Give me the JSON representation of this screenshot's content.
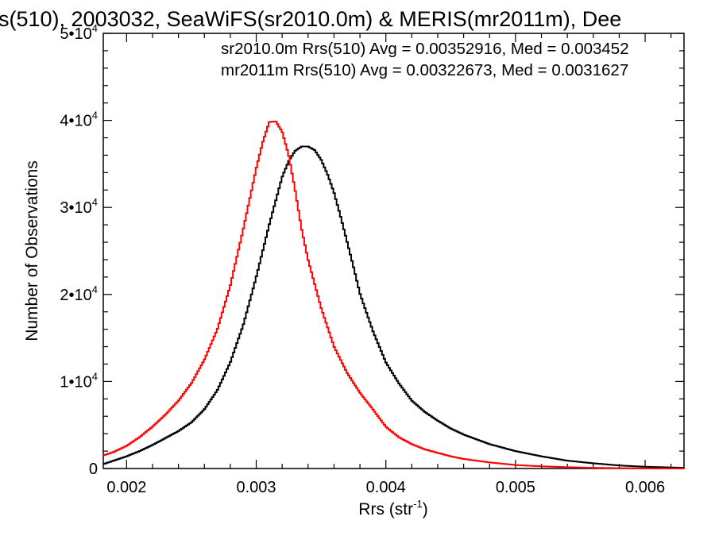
{
  "chart_data": {
    "type": "line",
    "title": "s(510), 2003032, SeaWiFS(sr2010.0m) & MERIS(mr2011m), Dee",
    "xlabel": "Rrs (str",
    "xlabel_sup": "-1",
    "xlabel_close": ")",
    "ylabel": "Number of Observations",
    "xlim": [
      0.00182,
      0.0063
    ],
    "ylim": [
      0,
      50000
    ],
    "x_ticks": [
      {
        "value": 0.002,
        "label": "0.002"
      },
      {
        "value": 0.003,
        "label": "0.003"
      },
      {
        "value": 0.004,
        "label": "0.004"
      },
      {
        "value": 0.005,
        "label": "0.005"
      },
      {
        "value": 0.006,
        "label": "0.006"
      }
    ],
    "y_ticks": [
      {
        "value": 0,
        "label": "0",
        "sup": ""
      },
      {
        "value": 10000,
        "label": "1•10",
        "sup": "4"
      },
      {
        "value": 20000,
        "label": "2•10",
        "sup": "4"
      },
      {
        "value": 30000,
        "label": "3•10",
        "sup": "4"
      },
      {
        "value": 40000,
        "label": "4•10",
        "sup": "4"
      },
      {
        "value": 50000,
        "label": "5•10",
        "sup": "4"
      }
    ],
    "grid": false,
    "legend_position": "top-right",
    "annotations": [
      {
        "text": "sr2010.0m Rrs(510) Avg = 0.00352916, Med = 0.003452",
        "color": "#000000"
      },
      {
        "text": "mr2011m Rrs(510) Avg = 0.00322673, Med = 0.0031627",
        "color": "#ff0000"
      }
    ],
    "series": [
      {
        "color": "#000000",
        "x": [
          0.00182,
          0.0019,
          0.002,
          0.0021,
          0.0022,
          0.0023,
          0.0024,
          0.0025,
          0.0026,
          0.0027,
          0.0028,
          0.0029,
          0.003,
          0.0031,
          0.0032,
          0.00325,
          0.0033,
          0.00335,
          0.0034,
          0.00345,
          0.0035,
          0.00355,
          0.0036,
          0.00365,
          0.0037,
          0.00375,
          0.0038,
          0.0039,
          0.004,
          0.0041,
          0.0042,
          0.0043,
          0.0044,
          0.0045,
          0.0046,
          0.0048,
          0.005,
          0.0052,
          0.0054,
          0.0056,
          0.0058,
          0.006,
          0.0063
        ],
        "y": [
          500,
          900,
          1400,
          2000,
          2700,
          3500,
          4300,
          5300,
          6800,
          9000,
          12200,
          16500,
          22000,
          28000,
          33500,
          35300,
          36500,
          37000,
          37000,
          36600,
          35500,
          33800,
          31700,
          29000,
          26100,
          23200,
          20100,
          15800,
          12200,
          9800,
          7800,
          6500,
          5500,
          4600,
          3900,
          2800,
          2000,
          1400,
          900,
          600,
          350,
          200,
          80
        ]
      },
      {
        "color": "#ff0000",
        "x": [
          0.00182,
          0.0019,
          0.002,
          0.0021,
          0.0022,
          0.0023,
          0.0024,
          0.0025,
          0.0026,
          0.0027,
          0.0028,
          0.0029,
          0.003,
          0.00305,
          0.0031,
          0.00315,
          0.0032,
          0.00325,
          0.0033,
          0.00335,
          0.0034,
          0.0035,
          0.0036,
          0.0037,
          0.0038,
          0.0039,
          0.004,
          0.0041,
          0.0042,
          0.0043,
          0.0044,
          0.0045,
          0.0046,
          0.0048,
          0.005,
          0.0052,
          0.0054,
          0.0056,
          0.0058,
          0.006,
          0.0063
        ],
        "y": [
          1500,
          1900,
          2600,
          3600,
          4800,
          6200,
          7800,
          9800,
          12500,
          16000,
          21000,
          27500,
          34500,
          37500,
          39800,
          39900,
          38700,
          36000,
          32000,
          27500,
          24000,
          18500,
          14000,
          11000,
          8700,
          6800,
          4800,
          3600,
          2800,
          2200,
          1800,
          1400,
          1100,
          700,
          400,
          250,
          150,
          80,
          40,
          20,
          5
        ]
      }
    ]
  }
}
